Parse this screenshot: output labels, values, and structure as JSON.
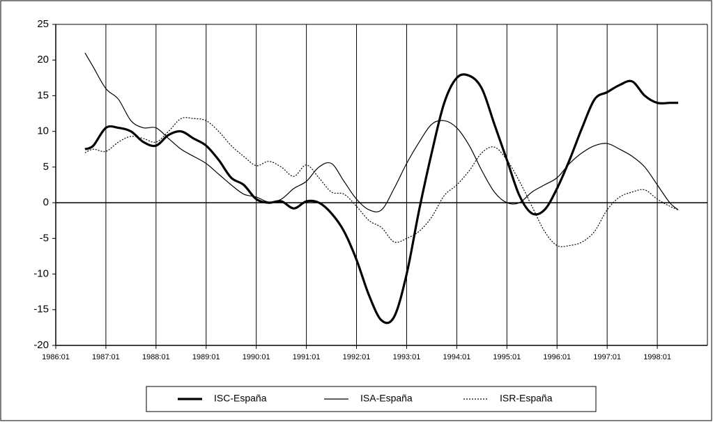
{
  "chart_data": {
    "type": "line",
    "x": [
      "1986:08",
      "1986:10",
      "1987:01",
      "1987:04",
      "1987:07",
      "1987:10",
      "1988:01",
      "1988:04",
      "1988:07",
      "1988:10",
      "1989:01",
      "1989:04",
      "1989:07",
      "1989:10",
      "1990:01",
      "1990:04",
      "1990:07",
      "1990:10",
      "1991:01",
      "1991:04",
      "1991:07",
      "1991:10",
      "1992:01",
      "1992:04",
      "1992:07",
      "1992:10",
      "1993:01",
      "1993:04",
      "1993:07",
      "1993:10",
      "1994:01",
      "1994:04",
      "1994:07",
      "1994:10",
      "1995:01",
      "1995:04",
      "1995:07",
      "1995:10",
      "1996:01",
      "1996:04",
      "1996:07",
      "1996:10",
      "1997:01",
      "1997:04",
      "1997:07",
      "1997:10",
      "1998:01",
      "1998:04",
      "1998:06"
    ],
    "series": [
      {
        "name": "ISC-España",
        "color": "#000000",
        "line_width": 3.2,
        "dash": "solid",
        "values": [
          7.5,
          8,
          10.5,
          10.5,
          10,
          8.5,
          8,
          9.5,
          10,
          9,
          8,
          6,
          3.5,
          2.5,
          0.5,
          0,
          0.2,
          -0.8,
          0.2,
          0,
          -1.5,
          -4,
          -8,
          -13,
          -16.5,
          -16,
          -10,
          -1,
          7,
          14,
          17.5,
          17.8,
          16,
          11,
          6,
          1,
          -1.5,
          -1,
          2,
          6,
          10.5,
          14.5,
          15.5,
          16.5,
          17,
          15,
          14,
          14,
          14
        ]
      },
      {
        "name": "ISA-España",
        "color": "#000000",
        "line_width": 1.2,
        "dash": "solid",
        "values": [
          21,
          19,
          16,
          14.5,
          11.5,
          10.5,
          10.5,
          9,
          7.5,
          6.5,
          5.5,
          4,
          2.5,
          1.2,
          0.8,
          0.1,
          0.5,
          2,
          3,
          5,
          5.5,
          3,
          0.5,
          -1,
          -1,
          2,
          5.5,
          8.5,
          11,
          11.5,
          10.5,
          8,
          4.5,
          1.5,
          0,
          0,
          1.5,
          2.5,
          3.5,
          5.5,
          7,
          8,
          8.3,
          7.5,
          6.5,
          5,
          2.5,
          0,
          -1
        ]
      },
      {
        "name": "ISR-España",
        "color": "#000000",
        "line_width": 1.2,
        "dash": "dotted",
        "values": [
          7,
          7.5,
          7.2,
          8.5,
          9.3,
          9,
          8.5,
          10,
          11.8,
          11.8,
          11.5,
          10,
          8,
          6.5,
          5.2,
          5.8,
          5,
          3.7,
          5.3,
          3.5,
          1.5,
          1.2,
          -0.5,
          -2.5,
          -3.5,
          -5.5,
          -5,
          -4,
          -2,
          1,
          2.5,
          4.5,
          7,
          7.8,
          6,
          3,
          -0.5,
          -4,
          -6,
          -6,
          -5.5,
          -4,
          -1,
          0.8,
          1.5,
          1.8,
          0.5,
          -0.5,
          -1
        ]
      }
    ],
    "xlim": [
      "1986:01",
      "1999:01"
    ],
    "xticks": [
      "1986:01",
      "1987:01",
      "1988:01",
      "1989:01",
      "1990:01",
      "1991:01",
      "1992:01",
      "1993:01",
      "1994:01",
      "1995:01",
      "1996:01",
      "1997:01",
      "1998:01"
    ],
    "ylim": [
      -20,
      25
    ],
    "yticks": [
      -20,
      -15,
      -10,
      -5,
      0,
      5,
      10,
      15,
      20,
      25
    ],
    "grid": "x",
    "zero_line": true,
    "legend": "bottom"
  }
}
